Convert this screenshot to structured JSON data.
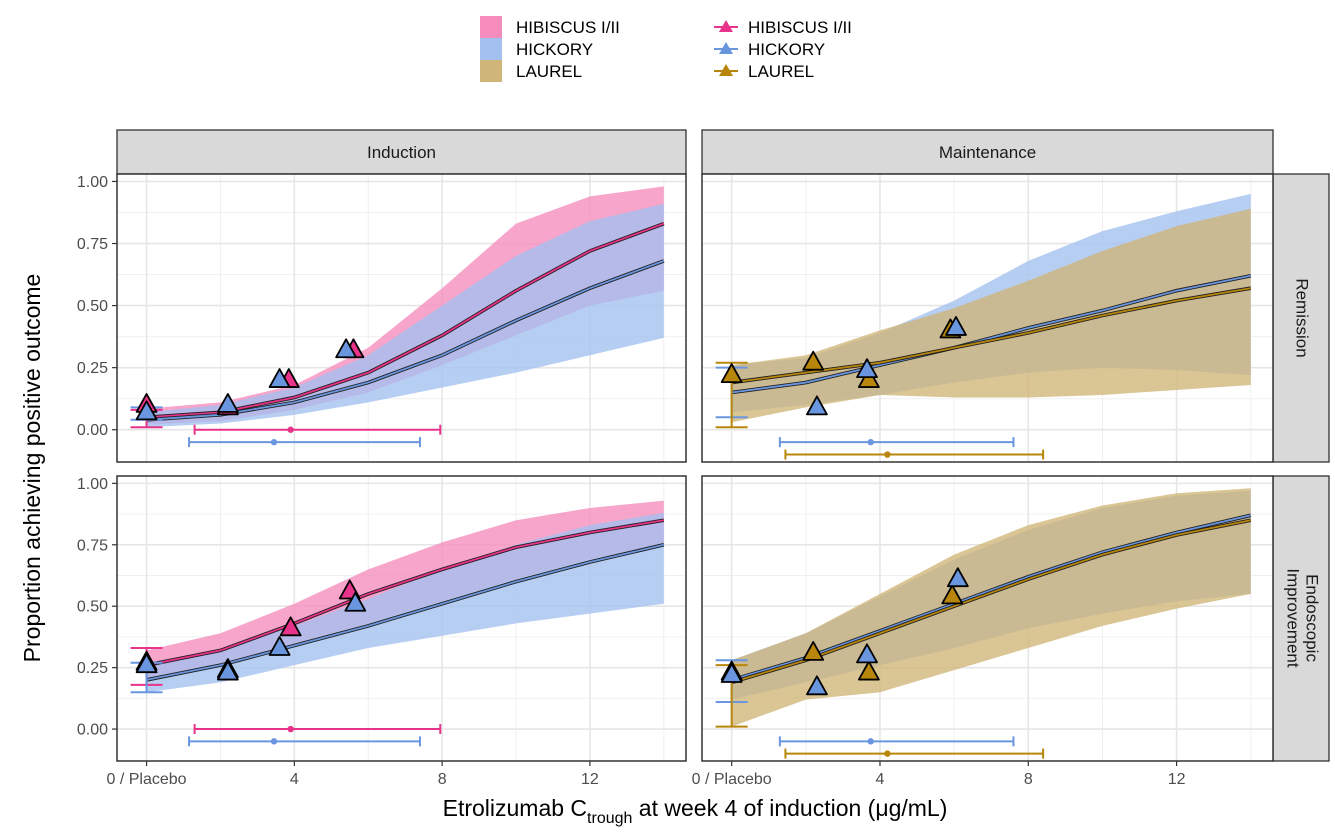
{
  "chart_data": {
    "type": "line",
    "xlabel_main": "Etrolizumab C",
    "xlabel_sub": "trough",
    "xlabel_rest": " at week 4  of induction (μg/mL)",
    "ylabel": "Proportion achieving positive outcome",
    "xlim": [
      -0.8,
      14.6
    ],
    "ylim": [
      -0.13,
      1.03
    ],
    "x_ticks": [
      {
        "value": 0,
        "label": "0 / Placebo"
      },
      {
        "value": 4,
        "label": "4"
      },
      {
        "value": 8,
        "label": "8"
      },
      {
        "value": 12,
        "label": "12"
      }
    ],
    "y_ticks": [
      {
        "value": 0,
        "label": "0.00"
      },
      {
        "value": 0.25,
        "label": "0.25"
      },
      {
        "value": 0.5,
        "label": "0.50"
      },
      {
        "value": 0.75,
        "label": "0.75"
      },
      {
        "value": 1,
        "label": "1.00"
      }
    ],
    "grid": true,
    "legend_position": "top",
    "colors": {
      "HIBISCUS I/II": "#e8338a",
      "HICKORY": "#6a96e0",
      "LAUREL": "#b8860b"
    },
    "ribbon_colors": {
      "HIBISCUS I/II": "#f58cbc",
      "HICKORY": "#a3c0ef",
      "LAUREL": "#cfb577"
    },
    "legend": {
      "fill_entries": [
        "HIBISCUS I/II",
        "HICKORY",
        "LAUREL"
      ],
      "line_entries": [
        "HIBISCUS I/II",
        "HICKORY",
        "LAUREL"
      ]
    },
    "column_strips": [
      "Induction",
      "Maintenance"
    ],
    "row_strips": [
      [
        "Remission"
      ],
      [
        "Endoscopic",
        "Improvement"
      ]
    ],
    "panels": [
      {
        "col": 0,
        "row": 0,
        "series": [
          {
            "name": "HIBISCUS I/II",
            "x": [
              0,
              2,
              4,
              6,
              8,
              10,
              12,
              14
            ],
            "median": [
              0.05,
              0.07,
              0.13,
              0.23,
              0.38,
              0.56,
              0.72,
              0.83
            ],
            "lower": [
              0.02,
              0.035,
              0.08,
              0.15,
              0.26,
              0.38,
              0.5,
              0.56
            ],
            "upper": [
              0.085,
              0.11,
              0.18,
              0.33,
              0.57,
              0.83,
              0.94,
              0.98
            ]
          },
          {
            "name": "HICKORY",
            "x": [
              0,
              2,
              4,
              6,
              8,
              10,
              12,
              14
            ],
            "median": [
              0.04,
              0.06,
              0.11,
              0.19,
              0.3,
              0.44,
              0.57,
              0.68
            ],
            "lower": [
              0.01,
              0.025,
              0.06,
              0.11,
              0.17,
              0.23,
              0.3,
              0.37
            ],
            "upper": [
              0.07,
              0.1,
              0.17,
              0.3,
              0.5,
              0.7,
              0.84,
              0.91
            ]
          }
        ],
        "observed": [
          {
            "name": "HIBISCUS I/II",
            "x": [
              0,
              2.2,
              3.85,
              5.6
            ],
            "y": [
              0.1,
              0.09,
              0.2,
              0.32
            ]
          },
          {
            "name": "HICKORY",
            "x": [
              0,
              2.2,
              3.6,
              5.4
            ],
            "y": [
              0.07,
              0.1,
              0.2,
              0.32
            ]
          }
        ],
        "placebo_bars": [
          {
            "name": "HIBISCUS I/II",
            "lower": 0.01,
            "upper": 0.08
          },
          {
            "name": "HICKORY",
            "lower": 0.04,
            "upper": 0.09
          }
        ],
        "exposure_bars": [
          {
            "name": "HIBISCUS I/II",
            "y": 0.0,
            "low": 1.3,
            "mid": 3.9,
            "high": 7.95
          },
          {
            "name": "HICKORY",
            "y": -0.05,
            "low": 1.15,
            "mid": 3.45,
            "high": 7.4
          }
        ]
      },
      {
        "col": 1,
        "row": 0,
        "series": [
          {
            "name": "HICKORY",
            "x": [
              0,
              2,
              4,
              6,
              8,
              10,
              12,
              14
            ],
            "median": [
              0.15,
              0.19,
              0.26,
              0.33,
              0.41,
              0.48,
              0.56,
              0.62
            ],
            "lower": [
              0.07,
              0.1,
              0.14,
              0.19,
              0.23,
              0.25,
              0.24,
              0.22
            ],
            "upper": [
              0.26,
              0.29,
              0.39,
              0.52,
              0.68,
              0.8,
              0.88,
              0.95
            ]
          },
          {
            "name": "LAUREL",
            "x": [
              0,
              2,
              4,
              6,
              8,
              10,
              12,
              14
            ],
            "median": [
              0.19,
              0.23,
              0.27,
              0.33,
              0.39,
              0.46,
              0.52,
              0.57
            ],
            "lower": [
              0.03,
              0.09,
              0.14,
              0.13,
              0.13,
              0.14,
              0.16,
              0.18
            ],
            "upper": [
              0.26,
              0.3,
              0.4,
              0.49,
              0.6,
              0.72,
              0.82,
              0.89
            ]
          }
        ],
        "observed": [
          {
            "name": "LAUREL",
            "x": [
              0,
              2.2,
              3.7,
              5.9
            ],
            "y": [
              0.22,
              0.27,
              0.2,
              0.4
            ]
          },
          {
            "name": "HICKORY",
            "x": [
              2.3,
              3.65,
              6.05
            ],
            "y": [
              0.09,
              0.24,
              0.41
            ]
          }
        ],
        "placebo_bars": [
          {
            "name": "HICKORY",
            "lower": 0.05,
            "upper": 0.25
          },
          {
            "name": "LAUREL",
            "lower": 0.01,
            "upper": 0.27
          }
        ],
        "exposure_bars": [
          {
            "name": "HICKORY",
            "y": -0.05,
            "low": 1.3,
            "mid": 3.75,
            "high": 7.6
          },
          {
            "name": "LAUREL",
            "y": -0.1,
            "low": 1.45,
            "mid": 4.2,
            "high": 8.4
          }
        ]
      },
      {
        "col": 0,
        "row": 1,
        "series": [
          {
            "name": "HIBISCUS I/II",
            "x": [
              0,
              2,
              4,
              6,
              8,
              10,
              12,
              14
            ],
            "median": [
              0.26,
              0.32,
              0.43,
              0.55,
              0.65,
              0.74,
              0.8,
              0.85
            ],
            "lower": [
              0.2,
              0.25,
              0.34,
              0.43,
              0.52,
              0.61,
              0.69,
              0.75
            ],
            "upper": [
              0.32,
              0.39,
              0.51,
              0.65,
              0.76,
              0.85,
              0.9,
              0.93
            ]
          },
          {
            "name": "HICKORY",
            "x": [
              0,
              2,
              4,
              6,
              8,
              10,
              12,
              14
            ],
            "median": [
              0.2,
              0.26,
              0.34,
              0.42,
              0.51,
              0.6,
              0.68,
              0.75
            ],
            "lower": [
              0.15,
              0.19,
              0.26,
              0.33,
              0.38,
              0.43,
              0.47,
              0.51
            ],
            "upper": [
              0.27,
              0.32,
              0.42,
              0.53,
              0.65,
              0.75,
              0.83,
              0.88
            ]
          }
        ],
        "observed": [
          {
            "name": "HIBISCUS I/II",
            "x": [
              0,
              2.2,
              3.9,
              5.5
            ],
            "y": [
              0.27,
              0.24,
              0.41,
              0.56
            ]
          },
          {
            "name": "HICKORY",
            "x": [
              0,
              2.2,
              3.6,
              5.65
            ],
            "y": [
              0.26,
              0.23,
              0.33,
              0.51
            ]
          }
        ],
        "placebo_bars": [
          {
            "name": "HIBISCUS I/II",
            "lower": 0.18,
            "upper": 0.33
          },
          {
            "name": "HICKORY",
            "lower": 0.15,
            "upper": 0.27
          }
        ],
        "exposure_bars": [
          {
            "name": "HIBISCUS I/II",
            "y": 0.0,
            "low": 1.3,
            "mid": 3.9,
            "high": 7.95
          },
          {
            "name": "HICKORY",
            "y": -0.05,
            "low": 1.15,
            "mid": 3.45,
            "high": 7.4
          }
        ]
      },
      {
        "col": 1,
        "row": 1,
        "series": [
          {
            "name": "HICKORY",
            "x": [
              0,
              2,
              4,
              6,
              8,
              10,
              12,
              14
            ],
            "median": [
              0.2,
              0.29,
              0.4,
              0.51,
              0.62,
              0.72,
              0.8,
              0.87
            ],
            "lower": [
              0.12,
              0.19,
              0.26,
              0.33,
              0.41,
              0.47,
              0.52,
              0.55
            ],
            "upper": [
              0.28,
              0.39,
              0.54,
              0.69,
              0.81,
              0.9,
              0.95,
              0.97
            ]
          },
          {
            "name": "LAUREL",
            "x": [
              0,
              2,
              4,
              6,
              8,
              10,
              12,
              14
            ],
            "median": [
              0.19,
              0.28,
              0.39,
              0.5,
              0.61,
              0.71,
              0.79,
              0.85
            ],
            "lower": [
              0.01,
              0.12,
              0.15,
              0.24,
              0.33,
              0.42,
              0.49,
              0.55
            ],
            "upper": [
              0.28,
              0.39,
              0.55,
              0.71,
              0.83,
              0.91,
              0.96,
              0.98
            ]
          }
        ],
        "observed": [
          {
            "name": "LAUREL",
            "x": [
              0,
              2.2,
              3.7,
              5.95
            ],
            "y": [
              0.23,
              0.31,
              0.23,
              0.54
            ]
          },
          {
            "name": "HICKORY",
            "x": [
              0,
              2.3,
              3.65,
              6.1
            ],
            "y": [
              0.22,
              0.17,
              0.3,
              0.61
            ]
          }
        ],
        "placebo_bars": [
          {
            "name": "HICKORY",
            "lower": 0.11,
            "upper": 0.28
          },
          {
            "name": "LAUREL",
            "lower": 0.01,
            "upper": 0.26
          }
        ],
        "exposure_bars": [
          {
            "name": "HICKORY",
            "y": -0.05,
            "low": 1.3,
            "mid": 3.75,
            "high": 7.6
          },
          {
            "name": "LAUREL",
            "y": -0.1,
            "low": 1.45,
            "mid": 4.2,
            "high": 8.4
          }
        ]
      }
    ]
  }
}
